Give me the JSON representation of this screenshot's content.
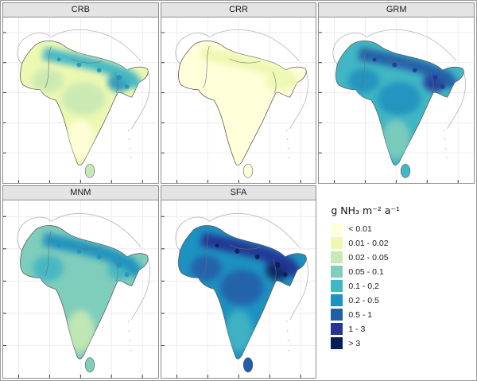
{
  "panels": [
    {
      "label": "CRB",
      "fills": {
        "base": "#edf8b1",
        "band": "#41b6c4",
        "west": "#c7e9b4",
        "central": "#c7e9b4",
        "south": "#ffffd9",
        "east": "#1d91c0",
        "srilanka": "#c7e9b4",
        "spots": "#1d91c0"
      }
    },
    {
      "label": "CRR",
      "fills": {
        "base": "#ffffd9",
        "band": "#edf8b1",
        "west": null,
        "central": null,
        "south": null,
        "east": "#edf8b1",
        "srilanka": null,
        "spots": null
      }
    },
    {
      "label": "GRM",
      "fills": {
        "base": "#41b6c4",
        "band": "#225ea8",
        "west": "#1d91c0",
        "central": "#1d91c0",
        "south": "#7fcdbb",
        "east": "#253494",
        "srilanka": "#41b6c4",
        "spots": "#253494"
      }
    },
    {
      "label": "MNM",
      "fills": {
        "base": "#7fcdbb",
        "band": "#1d91c0",
        "west": "#41b6c4",
        "central": "#7fcdbb",
        "south": "#c7e9b4",
        "east": "#41b6c4",
        "srilanka": "#7fcdbb",
        "spots": "#1d91c0"
      }
    },
    {
      "label": "SFA",
      "fills": {
        "base": "#1d91c0",
        "band": "#253494",
        "west": "#225ea8",
        "central": "#225ea8",
        "south": "#41b6c4",
        "east": "#081d58",
        "srilanka": "#225ea8",
        "spots": "#081d58"
      }
    }
  ],
  "legend": {
    "title": "g NH₃ m⁻² a⁻¹",
    "entries": [
      {
        "label": "< 0.01",
        "color": "#ffffd9"
      },
      {
        "label": "0.01 - 0.02",
        "color": "#edf8b1"
      },
      {
        "label": "0.02 - 0.05",
        "color": "#c7e9b4"
      },
      {
        "label": "0.05 - 0.1",
        "color": "#7fcdbb"
      },
      {
        "label": "0.1 - 0.2",
        "color": "#41b6c4"
      },
      {
        "label": "0.2 - 0.5",
        "color": "#1d91c0"
      },
      {
        "label": "0.5 - 1",
        "color": "#225ea8"
      },
      {
        "label": "1 - 3",
        "color": "#253494"
      },
      {
        "label": "> 3",
        "color": "#081d58"
      }
    ]
  },
  "chart_data": {
    "type": "heatmap",
    "subtype": "faceted choropleth maps of South Asia",
    "facets": [
      "CRB",
      "CRR",
      "GRM",
      "MNM",
      "SFA"
    ],
    "legend_title": "g NH₃ m⁻² a⁻¹",
    "classes": [
      "< 0.01",
      "0.01 - 0.02",
      "0.02 - 0.05",
      "0.05 - 0.1",
      "0.1 - 0.2",
      "0.2 - 0.5",
      "0.5 - 1",
      "1 - 3",
      "> 3"
    ],
    "palette": [
      "#ffffd9",
      "#edf8b1",
      "#c7e9b4",
      "#7fcdbb",
      "#41b6c4",
      "#1d91c0",
      "#225ea8",
      "#253494",
      "#081d58"
    ],
    "facet_overall_intensity": {
      "CRB": "low-moderate (0.01-0.2, higher along Indo-Gangetic plain and Bengal)",
      "CRR": "very low (< 0.01 nearly everywhere)",
      "GRM": "high (0.2-3, darkest along northern plain)",
      "MNM": "moderate (0.05-0.5, higher band across north)",
      "SFA": "very high (0.5->3, darkest along northern plain and Bengal)"
    },
    "legend_position": "right of bottom row",
    "grid": true
  }
}
